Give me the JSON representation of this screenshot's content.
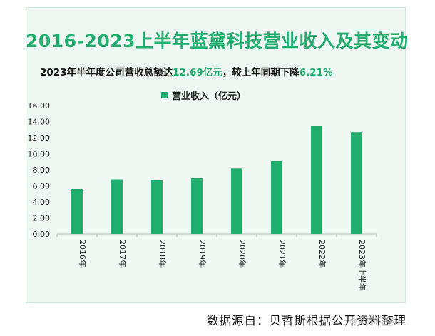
{
  "page": {
    "title": "2016-2023上半年蓝黛科技营业收入及其变动",
    "subtitle_prefix": "2023年半年度公司营收总额达",
    "subtitle_value1": "12.69亿元",
    "subtitle_mid": "，较上年同期下降",
    "subtitle_value2": "6.21%",
    "source": "数据源自：贝哲斯根据公开资料整理",
    "watermark_text": "@贝哲斯咨询"
  },
  "colors": {
    "accent": "#1fae6e",
    "bar": "#1fae6e"
  },
  "chart_data": {
    "type": "bar",
    "title": "2016-2023上半年蓝黛科技营业收入及其变动",
    "series": [
      {
        "name": "营业收入（亿元）",
        "values": [
          5.6,
          6.8,
          6.7,
          6.95,
          8.15,
          9.1,
          13.5,
          12.69
        ]
      }
    ],
    "categories": [
      "2016年",
      "2017年",
      "2018年",
      "2019年",
      "2020年",
      "2021年",
      "2022年",
      "2023年上半年"
    ],
    "y_ticks": [
      "0.00",
      "2.00",
      "4.00",
      "6.00",
      "8.00",
      "10.00",
      "12.00",
      "14.00",
      "16.00"
    ],
    "ylim": [
      0,
      16
    ],
    "legend": "营业收入（亿元）",
    "legend_position": "top-center",
    "grid": false
  }
}
